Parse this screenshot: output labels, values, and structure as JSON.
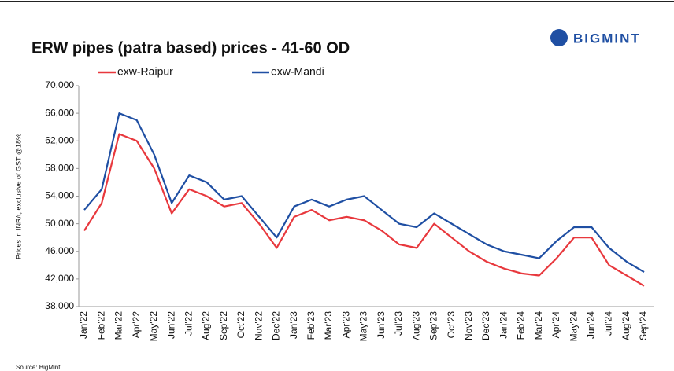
{
  "brand": "BIGMINT",
  "source": "Source: BigMint",
  "chart_data": {
    "type": "line",
    "title": "ERW pipes (patra based) prices - 41-60 OD",
    "y_label": "Prices in INR/t, exclusive of GST @18%",
    "categories": [
      "Jan'22",
      "Feb'22",
      "Mar'22",
      "Apr'22",
      "May'22",
      "Jun'22",
      "Jul'22",
      "Aug'22",
      "Sep'22",
      "Oct'22",
      "Nov'22",
      "Dec'22",
      "Jan'23",
      "Feb'23",
      "Mar'23",
      "Apr'23",
      "May'23",
      "Jun'23",
      "Jul'23",
      "Aug'23",
      "Sep'23",
      "Oct'23",
      "Nov'23",
      "Dec'23",
      "Jan'24",
      "Feb'24",
      "Mar'24",
      "Apr'24",
      "May'24",
      "Jun'24",
      "Jul'24",
      "Aug'24",
      "Sep'24"
    ],
    "series": [
      {
        "name": "exw-Raipur",
        "color": "#e8383d",
        "values": [
          49000,
          53000,
          63000,
          62000,
          58000,
          51500,
          55000,
          54000,
          52500,
          53000,
          50000,
          46500,
          51000,
          52000,
          50500,
          51000,
          50500,
          49000,
          47000,
          46500,
          50000,
          48000,
          46000,
          44500,
          43500,
          42800,
          42500,
          45000,
          48000,
          48000,
          44000,
          42500,
          41000
        ]
      },
      {
        "name": "exw-Mandi",
        "color": "#1f4fa3",
        "values": [
          52000,
          55000,
          66000,
          65000,
          60000,
          53000,
          57000,
          56000,
          53500,
          54000,
          51000,
          48000,
          52500,
          53500,
          52500,
          53500,
          54000,
          52000,
          50000,
          49500,
          51500,
          50000,
          48500,
          47000,
          46000,
          45500,
          45000,
          47500,
          49500,
          49500,
          46500,
          44500,
          43000
        ]
      }
    ],
    "ylim": [
      38000,
      70000
    ],
    "yticks": [
      {
        "value": 38000,
        "label": "38,000"
      },
      {
        "value": 42000,
        "label": "42,000"
      },
      {
        "value": 46000,
        "label": "46,000"
      },
      {
        "value": 50000,
        "label": "50,000"
      },
      {
        "value": 54000,
        "label": "54,000"
      },
      {
        "value": 58000,
        "label": "58,000"
      },
      {
        "value": 62000,
        "label": "62,000"
      },
      {
        "value": 66000,
        "label": "66,000"
      },
      {
        "value": 70000,
        "label": "70,000"
      }
    ]
  }
}
